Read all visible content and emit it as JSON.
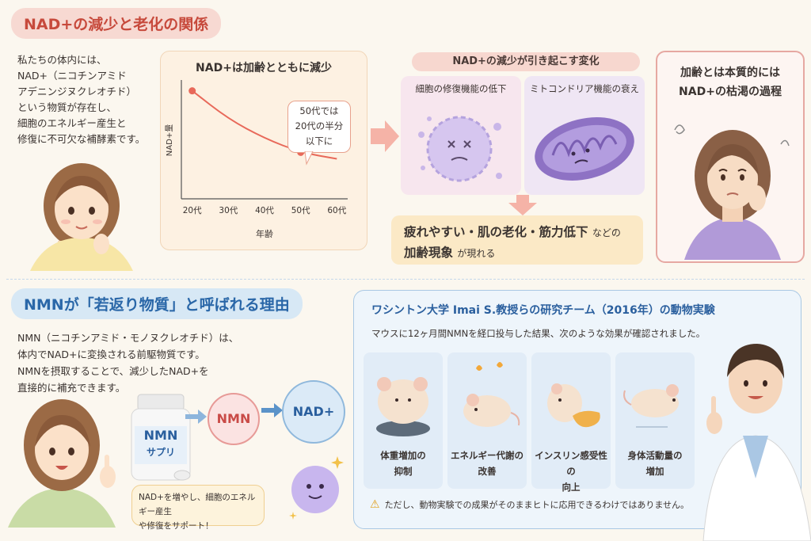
{
  "top_section": {
    "title": "NAD+の減少と老化の関係",
    "intro_lines": [
      "私たちの体内には、",
      "NAD+（ニコチンアミド",
      "アデニンジヌクレオチド）",
      "という物質が存在し、",
      "細胞のエネルギー産生と",
      "修復に不可欠な補酵素です。"
    ],
    "chart": {
      "title": "NAD+は加齢とともに減少",
      "ylabel": "NAD+量",
      "xlabel": "年齢",
      "callout_lines": [
        "50代では",
        "20代の半分",
        "以下に"
      ]
    },
    "changes": {
      "title": "NAD+の減少が引き起こす変化",
      "items": [
        "細胞の修復機能の低下",
        "ミトコンドリア機能の衰え"
      ]
    },
    "effects": {
      "line1": "疲れやすい・肌の老化・筋力低下",
      "line1_suffix": "などの",
      "line2": "加齢現象",
      "line2_suffix": "が現れる"
    },
    "aging": {
      "line1": "加齢とは本質的には",
      "line2": "NAD+の枯渇の過程"
    }
  },
  "bottom_section": {
    "title": "NMNが「若返り物質」と呼ばれる理由",
    "nmn_lines": [
      "NMN（ニコチンアミド・モノヌクレオチド）は、",
      "体内でNAD+に変換される前駆物質です。",
      "NMNを摂取することで、減少したNAD+を",
      "直接的に補充できます。"
    ],
    "bottle_label1": "NMN",
    "bottle_label2": "サプリ",
    "flow_nmn": "NMN",
    "flow_nad": "NAD+",
    "speech_lines": [
      "NAD+を増やし、細胞のエネルギー産生",
      "や修復をサポート！"
    ],
    "study": {
      "title": "ワシントン大学 Imai S.教授らの研究チーム（2016年）の動物実験",
      "subtitle": "マウスに12ヶ月間NMNを経口投与した結果、次のような効果が確認されました。",
      "results": [
        {
          "line1": "体重増加の",
          "line2": "抑制"
        },
        {
          "line1": "エネルギー代謝の",
          "line2": "改善"
        },
        {
          "line1": "インスリン感受性の",
          "line2": "向上"
        },
        {
          "line1": "身体活動量の",
          "line2": "増加"
        }
      ],
      "warning": "ただし、動物実験での成果がそのままヒトに応用できるわけではありません。"
    }
  },
  "chart_data": {
    "type": "line",
    "title": "NAD+は加齢とともに減少",
    "xlabel": "年齢",
    "ylabel": "NAD+量",
    "categories": [
      "20代",
      "30代",
      "40代",
      "50代",
      "60代"
    ],
    "x": [
      20,
      30,
      40,
      50,
      60
    ],
    "values": [
      100,
      74,
      56,
      43,
      37
    ],
    "highlight_points": [
      {
        "x": 20,
        "y": 100
      },
      {
        "x": 50,
        "y": 43
      }
    ],
    "xlim": [
      17,
      63
    ],
    "ylim": [
      0,
      110
    ],
    "grid": false,
    "color": "#e8695a"
  },
  "colors": {
    "accent_red": "#c74a3c",
    "accent_blue": "#2a67a8"
  }
}
